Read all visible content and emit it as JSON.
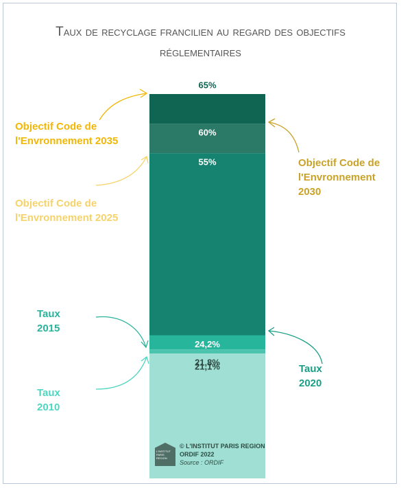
{
  "chart_data": {
    "type": "bar",
    "title": "Taux de recyclage francilien au regard des objectifs réglementaires",
    "categories": [
      "Objectif Code de\nl'Envronnement 2035",
      "Objectif Code de\nl'Envronnement 2030",
      "Objectif Code de\nl'Envronnement 2025",
      "Taux\n2020",
      "Taux\n2015",
      "Taux\n2010"
    ],
    "values": [
      65,
      60,
      55,
      24.2,
      21.8,
      21.1
    ],
    "value_labels": [
      "65%",
      "60%",
      "55%",
      "24,2%",
      "21,8%",
      "21,1%"
    ],
    "colors": [
      "#0f6552",
      "#2b7a67",
      "#15836f",
      "#27b59b",
      "#4cc4ad",
      "#a0dfd3"
    ],
    "label_colors": [
      "#f2b705",
      "#c9a227",
      "#f6d36a",
      "#1a9e86",
      "#2bb39a",
      "#4fd6c0"
    ],
    "ylim": [
      0,
      65
    ],
    "credits": {
      "logo": "L'INSTITUT PARIS REGION",
      "copyright": "© L'INSTITUT PARIS REGION",
      "edition": "ORDIF 2022",
      "source": "Source : ORDIF"
    }
  }
}
